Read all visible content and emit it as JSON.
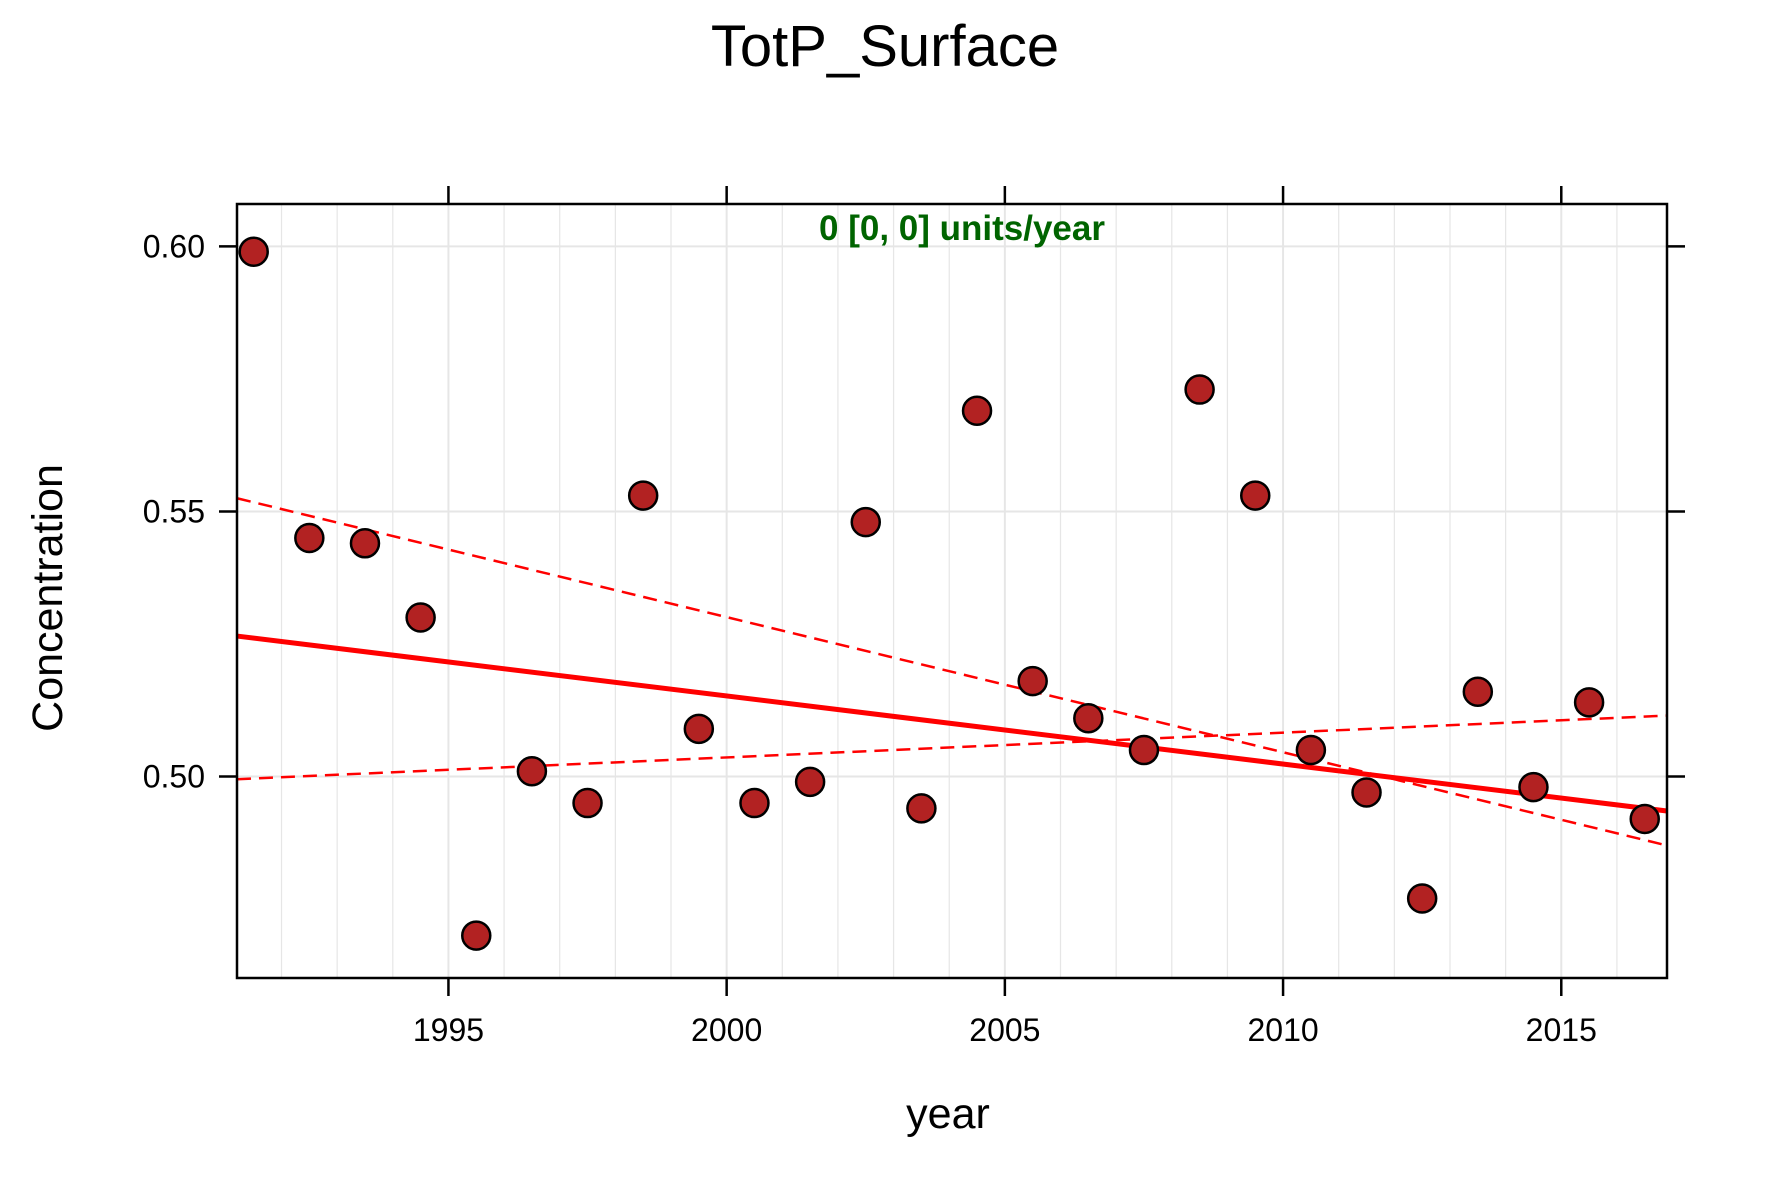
{
  "chart_data": {
    "type": "scatter",
    "title": "TotP_Surface",
    "xlabel": "year",
    "ylabel": "Concentration",
    "xlim": [
      1991.2,
      2016.9
    ],
    "ylim": [
      0.462,
      0.608
    ],
    "x_ticks": [
      1995,
      2000,
      2005,
      2010,
      2015
    ],
    "y_ticks": [
      0.5,
      0.55,
      0.6
    ],
    "x_tick_labels": [
      "1995",
      "2000",
      "2005",
      "2010",
      "2015"
    ],
    "y_tick_labels": [
      "0.50",
      "0.55",
      "0.60"
    ],
    "grid": true,
    "annotation": "0 [0, 0] units/year",
    "colors": {
      "point_fill": "#b22222",
      "point_stroke": "#000000",
      "trend": "#ff0000",
      "annotation": "#006400",
      "grid": "#e6e6e6"
    },
    "points": {
      "x": [
        1991.5,
        1992.5,
        1993.5,
        1994.5,
        1995.5,
        1996.5,
        1997.5,
        1998.5,
        1999.5,
        2000.5,
        2001.5,
        2002.5,
        2003.5,
        2004.5,
        2005.5,
        2006.5,
        2007.5,
        2008.5,
        2009.5,
        2010.5,
        2011.5,
        2012.5,
        2013.5,
        2014.5,
        2015.5,
        2016.5
      ],
      "y": [
        0.599,
        0.545,
        0.544,
        0.53,
        0.47,
        0.501,
        0.495,
        0.553,
        0.509,
        0.495,
        0.499,
        0.548,
        0.494,
        0.569,
        0.518,
        0.511,
        0.505,
        0.573,
        0.553,
        0.505,
        0.497,
        0.477,
        0.516,
        0.498,
        0.514,
        0.492
      ]
    },
    "trend_line": {
      "x": [
        1991.2,
        2016.9
      ],
      "y": [
        0.5265,
        0.4935
      ]
    },
    "ci_lines": [
      {
        "x": [
          1991.2,
          2016.9
        ],
        "y": [
          0.5525,
          0.487
        ]
      },
      {
        "x": [
          1991.2,
          2016.9
        ],
        "y": [
          0.4995,
          0.5115
        ]
      }
    ]
  }
}
